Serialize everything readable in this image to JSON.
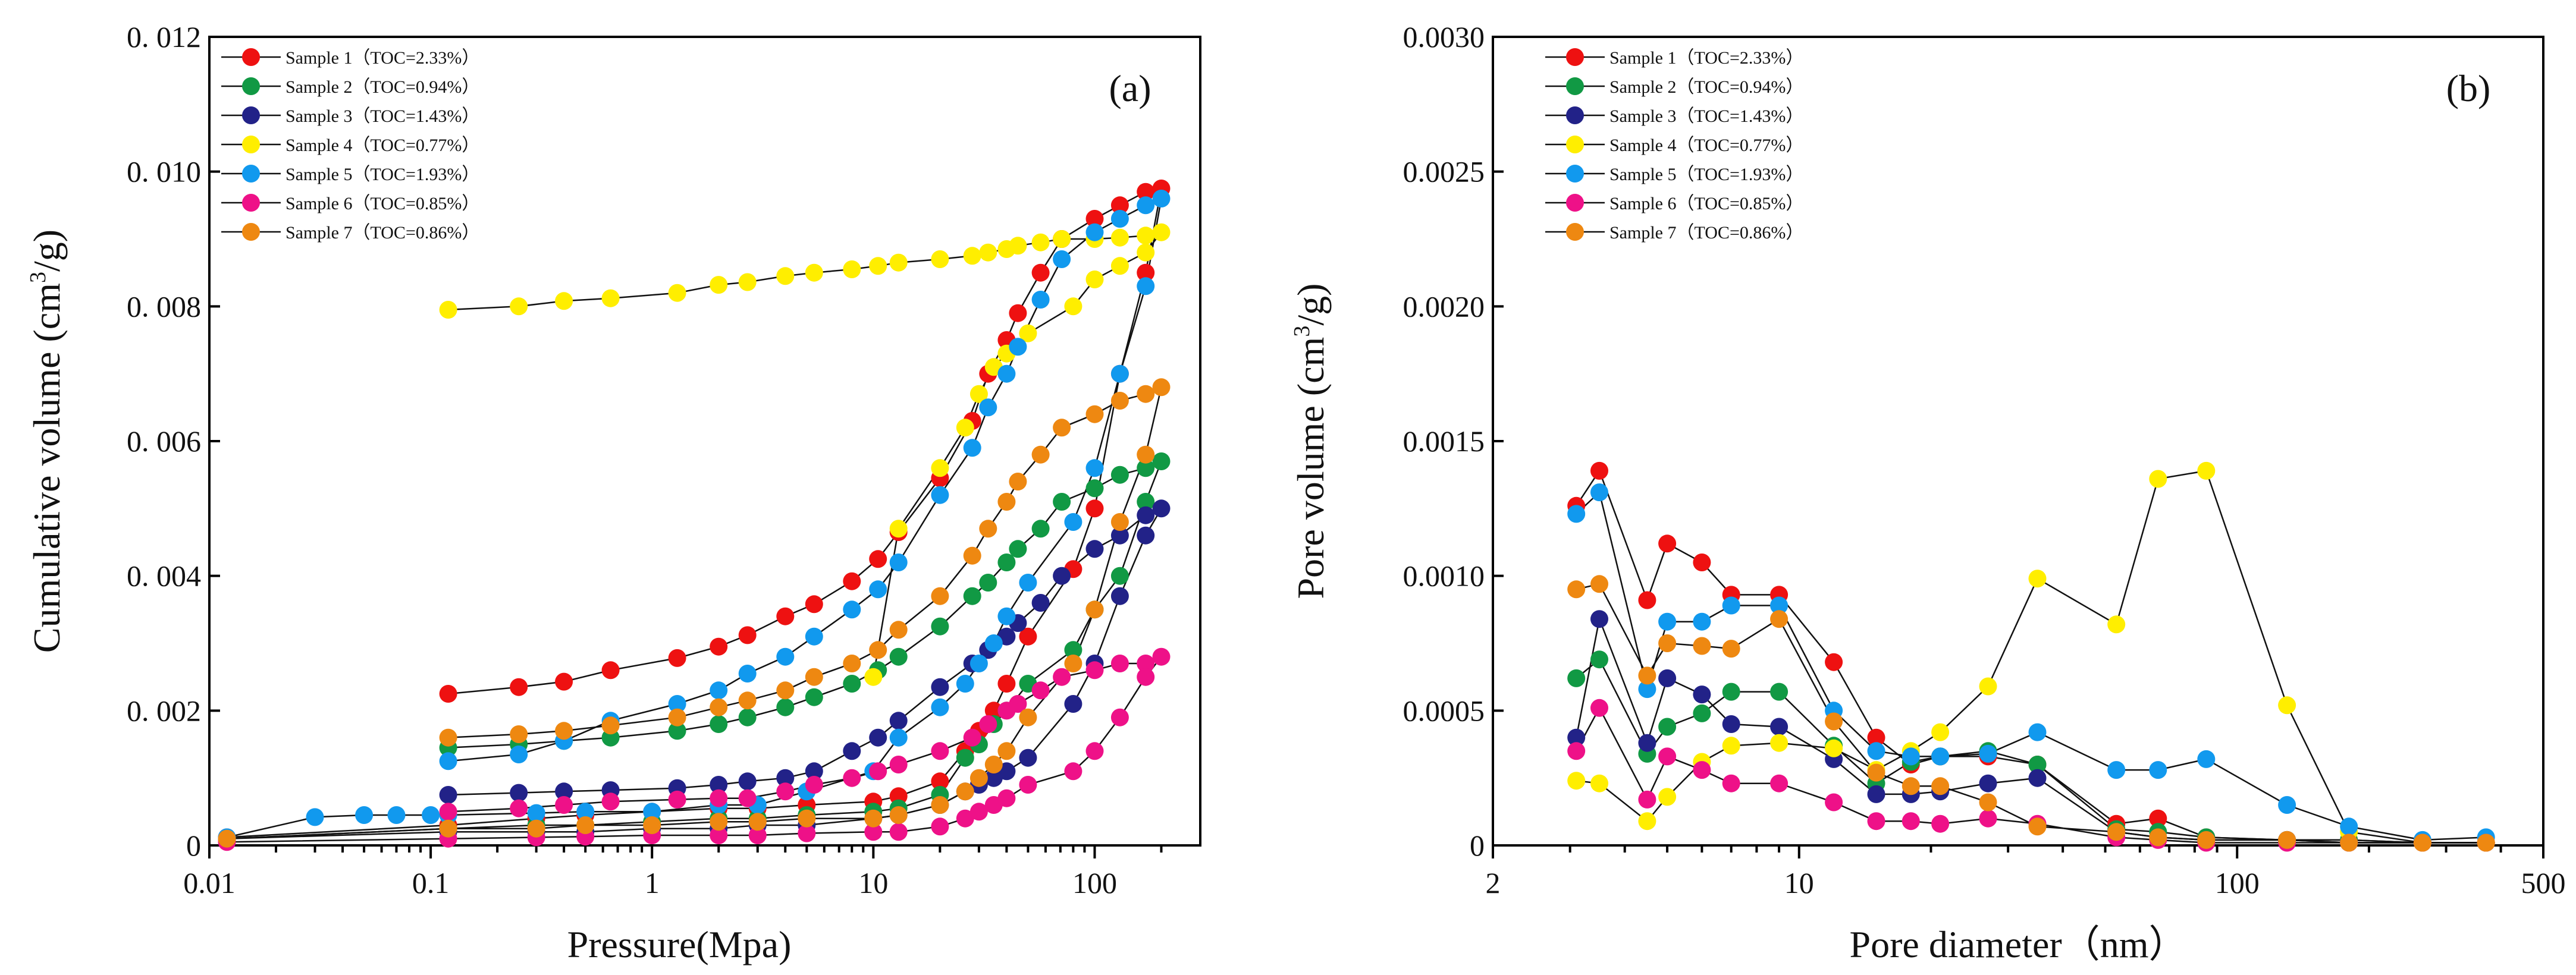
{
  "chart_data": [
    {
      "panel_label": "(a)",
      "type": "line",
      "xscale": "log",
      "xlabel": "Pressure(Mpa)",
      "ylabel": "Cumulative volume (cm³/g)",
      "ylabel_main": "Cumulative volume (cm",
      "ylabel_sup": "3",
      "ylabel_tail": "/g)",
      "xlim": [
        0.01,
        300
      ],
      "ylim": [
        0,
        0.012
      ],
      "xticks": [
        0.01,
        0.1,
        1,
        10,
        100
      ],
      "xtick_labels": [
        "0.01",
        "0.1",
        "1",
        "10",
        "100"
      ],
      "yticks": [
        0,
        0.002,
        0.004,
        0.006,
        0.008,
        0.01,
        0.012
      ],
      "ytick_labels": [
        "0",
        "0. 002",
        "0. 004",
        "0. 006",
        "0. 008",
        "0. 010",
        "0. 012"
      ],
      "legend_position": "top-left",
      "series": [
        {
          "name": "Sample 1（TOC=2.33%）",
          "color": "#ee1111",
          "x": [
            0.12,
            0.25,
            0.4,
            0.65,
            1.3,
            2,
            2.7,
            4,
            5.4,
            8,
            10.5,
            13,
            20,
            28,
            33,
            40,
            45,
            57,
            71,
            100,
            130,
            170,
            200,
            170,
            130,
            100,
            80,
            50,
            40,
            35,
            30,
            26,
            20,
            13,
            10,
            5,
            3,
            2,
            1,
            0.5,
            0.3,
            0.12,
            0.012
          ],
          "y": [
            0.00225,
            0.00235,
            0.00243,
            0.0026,
            0.00278,
            0.00295,
            0.00312,
            0.0034,
            0.00358,
            0.00392,
            0.00425,
            0.00465,
            0.00545,
            0.0063,
            0.007,
            0.0075,
            0.0079,
            0.0085,
            0.009,
            0.0093,
            0.0095,
            0.0097,
            0.00975,
            0.0085,
            0.007,
            0.005,
            0.0041,
            0.0031,
            0.0024,
            0.002,
            0.0017,
            0.0014,
            0.00095,
            0.00073,
            0.00065,
            0.0006,
            0.00055,
            0.00055,
            0.0005,
            0.00045,
            0.0004,
            0.0003,
            0.00012
          ]
        },
        {
          "name": "Sample 2（TOC=0.94%）",
          "color": "#119944",
          "x": [
            0.12,
            0.25,
            0.4,
            0.65,
            1.3,
            2,
            2.7,
            4,
            5.4,
            8,
            10.5,
            13,
            20,
            28,
            33,
            40,
            45,
            57,
            71,
            100,
            130,
            170,
            200,
            170,
            130,
            100,
            80,
            50,
            40,
            35,
            30,
            26,
            20,
            13,
            10,
            5,
            3,
            2,
            1,
            0.5,
            0.3,
            0.12,
            0.012
          ],
          "y": [
            0.00145,
            0.0015,
            0.00155,
            0.0016,
            0.0017,
            0.0018,
            0.0019,
            0.00205,
            0.0022,
            0.0024,
            0.0026,
            0.0028,
            0.00325,
            0.0037,
            0.0039,
            0.0042,
            0.0044,
            0.0047,
            0.0051,
            0.0053,
            0.0055,
            0.0056,
            0.0057,
            0.0051,
            0.004,
            0.0035,
            0.0029,
            0.0024,
            0.002,
            0.0018,
            0.0015,
            0.0013,
            0.00075,
            0.00055,
            0.0005,
            0.00045,
            0.0004,
            0.0004,
            0.00035,
            0.0003,
            0.0003,
            0.00025,
            0.0001
          ]
        },
        {
          "name": "Sample 3（TOC=1.43%）",
          "color": "#222288",
          "x": [
            0.12,
            0.25,
            0.4,
            0.65,
            1.3,
            2,
            2.7,
            4,
            5.4,
            8,
            10.5,
            13,
            20,
            28,
            33,
            40,
            45,
            57,
            71,
            100,
            130,
            170,
            200,
            170,
            130,
            100,
            80,
            50,
            40,
            35,
            30,
            26,
            20,
            13,
            10,
            5,
            3,
            2,
            1,
            0.5,
            0.3,
            0.12,
            0.012
          ],
          "y": [
            0.00075,
            0.00078,
            0.0008,
            0.00082,
            0.00085,
            0.0009,
            0.00095,
            0.001,
            0.0011,
            0.0014,
            0.0016,
            0.00185,
            0.00235,
            0.0027,
            0.0029,
            0.0031,
            0.0033,
            0.0036,
            0.004,
            0.0044,
            0.0046,
            0.0049,
            0.005,
            0.0046,
            0.0037,
            0.0027,
            0.0021,
            0.0013,
            0.0011,
            0.001,
            0.0009,
            0.0008,
            0.0006,
            0.00045,
            0.0004,
            0.0003,
            0.0003,
            0.00025,
            0.00025,
            0.0002,
            0.0002,
            0.0002,
            0.0001
          ]
        },
        {
          "name": "Sample 4（TOC=0.77%）",
          "color": "#ffee00",
          "x": [
            0.12,
            0.25,
            0.4,
            0.65,
            1.3,
            2,
            2.7,
            4,
            5.4,
            8,
            10.5,
            13,
            20,
            28,
            33,
            40,
            45,
            57,
            71,
            100,
            130,
            170,
            200,
            170,
            130,
            100,
            80,
            50,
            40,
            35,
            30,
            26,
            20,
            13,
            10
          ],
          "y": [
            0.00795,
            0.008,
            0.00808,
            0.00812,
            0.0082,
            0.00832,
            0.00836,
            0.00845,
            0.0085,
            0.00855,
            0.0086,
            0.00865,
            0.0087,
            0.00875,
            0.0088,
            0.00885,
            0.0089,
            0.00895,
            0.009,
            0.009,
            0.00902,
            0.00905,
            0.0091,
            0.0088,
            0.0086,
            0.0084,
            0.008,
            0.0076,
            0.0073,
            0.0071,
            0.0067,
            0.0062,
            0.0056,
            0.0047,
            0.0025
          ]
        },
        {
          "name": "Sample 5（TOC=1.93%）",
          "color": "#1199ee",
          "x": [
            0.12,
            0.25,
            0.4,
            0.65,
            1.3,
            2,
            2.7,
            4,
            5.4,
            8,
            10.5,
            13,
            20,
            28,
            33,
            40,
            45,
            57,
            71,
            100,
            130,
            170,
            200,
            170,
            130,
            100,
            80,
            50,
            40,
            35,
            30,
            26,
            20,
            13,
            10,
            5,
            3,
            2,
            1,
            0.5,
            0.3,
            0.12,
            0.1,
            0.07,
            0.05,
            0.03,
            0.012
          ],
          "y": [
            0.00125,
            0.00135,
            0.00155,
            0.00185,
            0.0021,
            0.0023,
            0.00255,
            0.0028,
            0.0031,
            0.0035,
            0.0038,
            0.0042,
            0.0052,
            0.0059,
            0.0065,
            0.007,
            0.0074,
            0.0081,
            0.0087,
            0.0091,
            0.0093,
            0.0095,
            0.0096,
            0.0083,
            0.007,
            0.0056,
            0.0048,
            0.0039,
            0.0034,
            0.003,
            0.0027,
            0.0024,
            0.00205,
            0.0016,
            0.0011,
            0.0008,
            0.0006,
            0.0006,
            0.0005,
            0.0005,
            0.00048,
            0.00045,
            0.00045,
            0.00045,
            0.00045,
            0.00042,
            0.00012
          ]
        },
        {
          "name": "Sample 6（TOC=0.85%）",
          "color": "#ee1188",
          "x": [
            0.12,
            0.25,
            0.4,
            0.65,
            1.3,
            2,
            2.7,
            4,
            5.4,
            8,
            10.5,
            13,
            20,
            28,
            33,
            40,
            45,
            57,
            71,
            100,
            130,
            170,
            200,
            170,
            130,
            100,
            80,
            50,
            40,
            35,
            30,
            26,
            20,
            13,
            10,
            5,
            3,
            2,
            1,
            0.5,
            0.3,
            0.12,
            0.012
          ],
          "y": [
            0.0005,
            0.00055,
            0.0006,
            0.00065,
            0.00068,
            0.0007,
            0.0007,
            0.0008,
            0.0009,
            0.001,
            0.0011,
            0.0012,
            0.0014,
            0.0016,
            0.0018,
            0.002,
            0.0021,
            0.0023,
            0.0025,
            0.0026,
            0.0027,
            0.0027,
            0.0028,
            0.0025,
            0.0019,
            0.0014,
            0.0011,
            0.0009,
            0.0007,
            0.0006,
            0.0005,
            0.0004,
            0.00028,
            0.0002,
            0.0002,
            0.00018,
            0.00015,
            0.00015,
            0.00015,
            0.00013,
            0.00012,
            0.0001,
            5e-05
          ]
        },
        {
          "name": "Sample 7（TOC=0.86%）",
          "color": "#ee8811",
          "x": [
            0.12,
            0.25,
            0.4,
            0.65,
            1.3,
            2,
            2.7,
            4,
            5.4,
            8,
            10.5,
            13,
            20,
            28,
            33,
            40,
            45,
            57,
            71,
            100,
            130,
            170,
            200,
            170,
            130,
            100,
            80,
            50,
            40,
            35,
            30,
            26,
            20,
            13,
            10,
            5,
            3,
            2,
            1,
            0.5,
            0.3,
            0.12,
            0.012
          ],
          "y": [
            0.0016,
            0.00165,
            0.0017,
            0.00178,
            0.0019,
            0.00205,
            0.00215,
            0.0023,
            0.0025,
            0.0027,
            0.0029,
            0.0032,
            0.0037,
            0.0043,
            0.0047,
            0.0051,
            0.0054,
            0.0058,
            0.0062,
            0.0064,
            0.0066,
            0.0067,
            0.0068,
            0.0058,
            0.0048,
            0.0035,
            0.0027,
            0.0019,
            0.0014,
            0.0012,
            0.001,
            0.0008,
            0.0006,
            0.00045,
            0.0004,
            0.0004,
            0.00035,
            0.00035,
            0.0003,
            0.0003,
            0.00025,
            0.00025,
            0.0001
          ]
        }
      ]
    },
    {
      "panel_label": "(b)",
      "type": "line",
      "xscale": "log",
      "xlabel": "Pore diameter（nm）",
      "ylabel": "Pore volume (cm³/g)",
      "ylabel_main": "Pore volume (cm",
      "ylabel_sup": "3",
      "ylabel_tail": "/g)",
      "xlim": [
        2,
        500
      ],
      "ylim": [
        0,
        0.003
      ],
      "xticks": [
        2,
        10,
        100,
        500
      ],
      "xtick_labels": [
        "2",
        "10",
        "100",
        "500"
      ],
      "yticks": [
        0,
        0.0005,
        0.001,
        0.0015,
        0.002,
        0.0025,
        0.003
      ],
      "ytick_labels": [
        "0",
        "0.0005",
        "0.0010",
        "0.0015",
        "0.0020",
        "0.0025",
        "0.0030"
      ],
      "legend_position": "top-left",
      "series": [
        {
          "name": "Sample 1（TOC=2.33%）",
          "color": "#ee1111",
          "x": [
            3.1,
            3.5,
            4.5,
            5,
            6,
            7,
            9,
            12,
            15,
            18,
            21,
            27,
            35,
            53,
            66,
            85,
            130,
            180,
            265,
            370
          ],
          "y": [
            0.00126,
            0.00139,
            0.00091,
            0.00112,
            0.00105,
            0.00093,
            0.00093,
            0.00068,
            0.0004,
            0.0003,
            0.00033,
            0.00033,
            0.0003,
            8e-05,
            0.0001,
            3e-05,
            2e-05,
            2e-05,
            1e-05,
            1e-05
          ]
        },
        {
          "name": "Sample 2（TOC=0.94%）",
          "color": "#119944",
          "x": [
            3.1,
            3.5,
            4.5,
            5,
            6,
            7,
            9,
            12,
            15,
            18,
            21,
            27,
            35,
            53,
            66,
            85,
            130,
            180,
            265,
            370
          ],
          "y": [
            0.00062,
            0.00069,
            0.00034,
            0.00044,
            0.00049,
            0.00057,
            0.00057,
            0.00037,
            0.00023,
            0.00031,
            0.00033,
            0.00035,
            0.0003,
            6e-05,
            5e-05,
            3e-05,
            2e-05,
            2e-05,
            1e-05,
            1e-05
          ]
        },
        {
          "name": "Sample 3（TOC=1.43%）",
          "color": "#222288",
          "x": [
            3.1,
            3.5,
            4.5,
            5,
            6,
            7,
            9,
            12,
            15,
            18,
            21,
            27,
            35,
            53,
            66,
            85,
            130,
            180,
            265,
            370
          ],
          "y": [
            0.0004,
            0.00084,
            0.00038,
            0.00062,
            0.00056,
            0.00045,
            0.00044,
            0.00032,
            0.00019,
            0.00019,
            0.0002,
            0.00023,
            0.00025,
            5e-05,
            3e-05,
            2e-05,
            2e-05,
            1e-05,
            1e-05,
            1e-05
          ]
        },
        {
          "name": "Sample 4（TOC=0.77%）",
          "color": "#ffee00",
          "x": [
            3.1,
            3.5,
            4.5,
            5,
            6,
            7,
            9,
            12,
            15,
            18,
            21,
            27,
            35,
            53,
            66,
            85,
            130,
            180,
            265,
            370
          ],
          "y": [
            0.00024,
            0.00023,
            9e-05,
            0.00018,
            0.00031,
            0.00037,
            0.00038,
            0.00036,
            0.00028,
            0.00035,
            0.00042,
            0.00059,
            0.00099,
            0.00082,
            0.00136,
            0.00139,
            0.00052,
            5e-05,
            1e-05,
            1e-05
          ]
        },
        {
          "name": "Sample 5（TOC=1.93%）",
          "color": "#1199ee",
          "x": [
            3.1,
            3.5,
            4.5,
            5,
            6,
            7,
            9,
            12,
            15,
            18,
            21,
            27,
            35,
            53,
            66,
            85,
            130,
            180,
            265,
            370
          ],
          "y": [
            0.00123,
            0.00131,
            0.00058,
            0.00083,
            0.00083,
            0.00089,
            0.00089,
            0.0005,
            0.00035,
            0.00033,
            0.00033,
            0.00034,
            0.00042,
            0.00028,
            0.00028,
            0.00032,
            0.00015,
            7e-05,
            2e-05,
            3e-05
          ]
        },
        {
          "name": "Sample 6（TOC=0.85%）",
          "color": "#ee1188",
          "x": [
            3.1,
            3.5,
            4.5,
            5,
            6,
            7,
            9,
            12,
            15,
            18,
            21,
            27,
            35,
            53,
            66,
            85,
            130,
            180,
            265,
            370
          ],
          "y": [
            0.00035,
            0.00051,
            0.00017,
            0.00033,
            0.00028,
            0.00023,
            0.00023,
            0.00016,
            9e-05,
            9e-05,
            8e-05,
            0.0001,
            8e-05,
            3e-05,
            2e-05,
            1e-05,
            1e-05,
            1e-05,
            1e-05,
            1e-05
          ]
        },
        {
          "name": "Sample 7（TOC=0.86%）",
          "color": "#ee8811",
          "x": [
            3.1,
            3.5,
            4.5,
            5,
            6,
            7,
            9,
            12,
            15,
            18,
            21,
            27,
            35,
            53,
            66,
            85,
            130,
            180,
            265,
            370
          ],
          "y": [
            0.00095,
            0.00097,
            0.00063,
            0.00075,
            0.00074,
            0.00073,
            0.00084,
            0.00046,
            0.00027,
            0.00022,
            0.00022,
            0.00016,
            7e-05,
            5e-05,
            3e-05,
            2e-05,
            2e-05,
            1e-05,
            1e-05,
            1e-05
          ]
        }
      ]
    }
  ]
}
